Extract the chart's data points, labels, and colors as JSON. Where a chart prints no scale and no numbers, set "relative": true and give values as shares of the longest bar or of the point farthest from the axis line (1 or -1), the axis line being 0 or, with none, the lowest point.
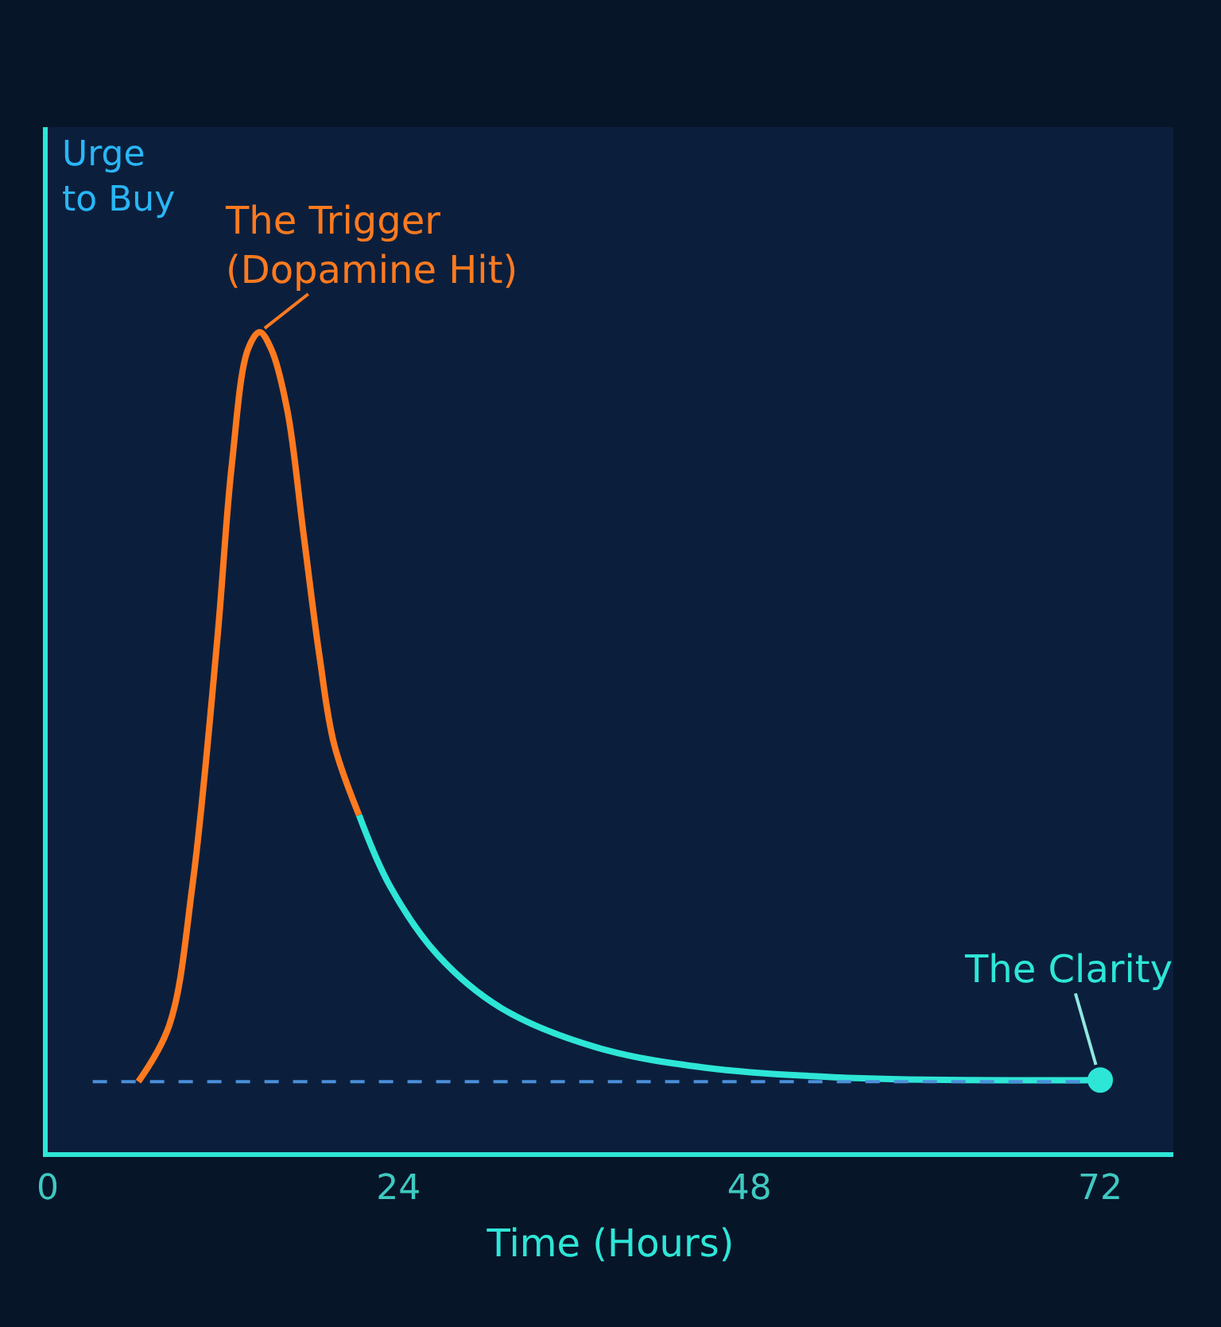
{
  "chart_data": {
    "type": "line",
    "relative": true,
    "xlabel": "Time (Hours)",
    "ylabel": "Urge\nto Buy",
    "xlim": [
      0,
      77
    ],
    "xticks": [
      0,
      24,
      48,
      72
    ],
    "grid": false,
    "marker": "none",
    "line_style": "solid",
    "series": [
      {
        "color": "#ff7a1f",
        "x": [
          6.2,
          8.3,
          9.9,
          11.6,
          12.6,
          13.7,
          14.5,
          15.3,
          16.4,
          17.5,
          18.6,
          19.6,
          21.3
        ],
        "values": [
          0.086,
          0.154,
          0.325,
          0.625,
          0.839,
          0.979,
          1.0,
          0.979,
          0.904,
          0.754,
          0.604,
          0.497,
          0.411
        ]
      },
      {
        "color": "#2ee6d6",
        "x": [
          21.3,
          23.4,
          26.7,
          31.0,
          37.5,
          45.0,
          55.8,
          72.0
        ],
        "values": [
          0.411,
          0.325,
          0.24,
          0.176,
          0.128,
          0.103,
          0.09,
          0.088
        ]
      },
      {
        "type": "scatter",
        "marker": "circle",
        "color": "#2ee6d6",
        "x": [
          72.0
        ],
        "values": [
          0.088
        ]
      }
    ],
    "ref_lines": [
      {
        "axis": "y",
        "value": 0.086,
        "color": "#4a8fd9",
        "line_style": "dashed"
      }
    ],
    "annotations": [
      {
        "text": "The Trigger\n(Dopamine Hit)",
        "x": 14.5,
        "y": 1.0
      },
      {
        "text": "The Clarity",
        "x": 72.0,
        "y": 0.088
      }
    ]
  }
}
